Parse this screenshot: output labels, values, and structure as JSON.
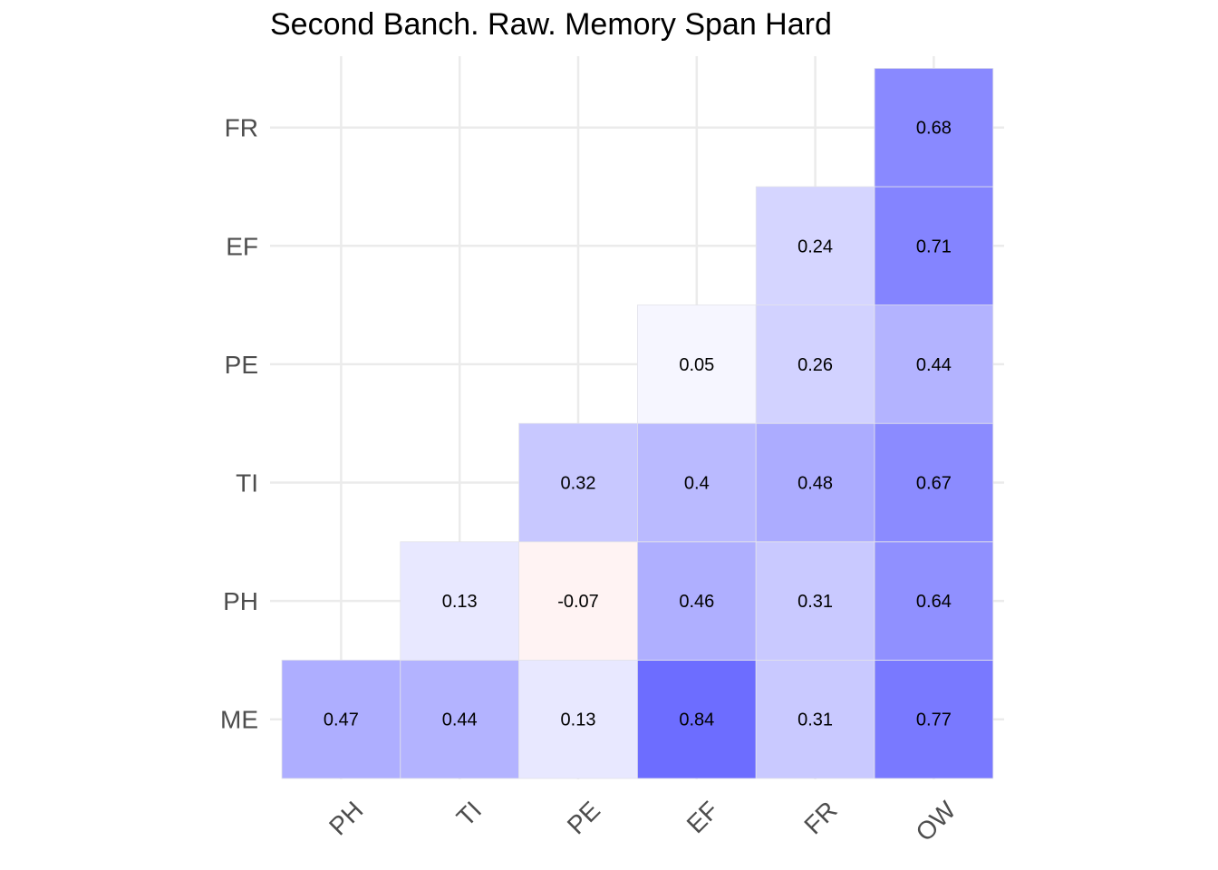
{
  "chart_data": {
    "type": "heatmap",
    "title": "Second Banch. Raw. Memory Span Hard",
    "x_categories": [
      "PH",
      "TI",
      "PE",
      "EF",
      "FR",
      "OW"
    ],
    "y_categories": [
      "ME",
      "PH",
      "TI",
      "PE",
      "EF",
      "FR"
    ],
    "cells": [
      {
        "x": "PH",
        "y": "ME",
        "value": 0.47,
        "label": "0.47"
      },
      {
        "x": "TI",
        "y": "ME",
        "value": 0.44,
        "label": "0.44"
      },
      {
        "x": "PE",
        "y": "ME",
        "value": 0.13,
        "label": "0.13"
      },
      {
        "x": "EF",
        "y": "ME",
        "value": 0.84,
        "label": "0.84"
      },
      {
        "x": "FR",
        "y": "ME",
        "value": 0.31,
        "label": "0.31"
      },
      {
        "x": "OW",
        "y": "ME",
        "value": 0.77,
        "label": "0.77"
      },
      {
        "x": "TI",
        "y": "PH",
        "value": 0.13,
        "label": "0.13"
      },
      {
        "x": "PE",
        "y": "PH",
        "value": -0.07,
        "label": "-0.07"
      },
      {
        "x": "EF",
        "y": "PH",
        "value": 0.46,
        "label": "0.46"
      },
      {
        "x": "FR",
        "y": "PH",
        "value": 0.31,
        "label": "0.31"
      },
      {
        "x": "OW",
        "y": "PH",
        "value": 0.64,
        "label": "0.64"
      },
      {
        "x": "PE",
        "y": "TI",
        "value": 0.32,
        "label": "0.32"
      },
      {
        "x": "EF",
        "y": "TI",
        "value": 0.4,
        "label": "0.4"
      },
      {
        "x": "FR",
        "y": "TI",
        "value": 0.48,
        "label": "0.48"
      },
      {
        "x": "OW",
        "y": "TI",
        "value": 0.67,
        "label": "0.67"
      },
      {
        "x": "EF",
        "y": "PE",
        "value": 0.05,
        "label": "0.05"
      },
      {
        "x": "FR",
        "y": "PE",
        "value": 0.26,
        "label": "0.26"
      },
      {
        "x": "OW",
        "y": "PE",
        "value": 0.44,
        "label": "0.44"
      },
      {
        "x": "FR",
        "y": "EF",
        "value": 0.24,
        "label": "0.24"
      },
      {
        "x": "OW",
        "y": "EF",
        "value": 0.71,
        "label": "0.71"
      },
      {
        "x": "OW",
        "y": "FR",
        "value": 0.68,
        "label": "0.68"
      }
    ],
    "color_scale": {
      "low": "#ff0000",
      "mid": "#ffffff",
      "high": "#0000ff",
      "limits": [
        -1,
        1
      ]
    },
    "legend": "none",
    "grid": true
  }
}
